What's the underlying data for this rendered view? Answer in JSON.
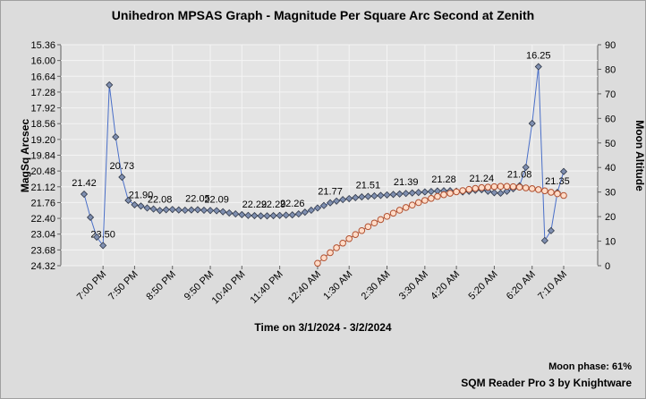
{
  "chart_data": {
    "type": "line",
    "title": "Unihedron MPSAS Graph - Magnitude Per Square Arc Second at Zenith",
    "xlabel": "Time on 3/1/2024 - 3/2/2024",
    "ylabel": "MagSq Arcsec",
    "y2label": "Moon Altitude",
    "annotations": [
      "Moon phase: 61%",
      "SQM Reader Pro 3 by Knightware"
    ],
    "categories": [
      null,
      null,
      null,
      "7:00 PM",
      null,
      null,
      null,
      null,
      "7:50 PM",
      null,
      null,
      null,
      null,
      null,
      "8:50 PM",
      null,
      null,
      null,
      null,
      null,
      "9:50 PM",
      null,
      null,
      null,
      null,
      "10:40 PM",
      null,
      null,
      null,
      null,
      null,
      "11:40 PM",
      null,
      null,
      null,
      null,
      null,
      "12:40 AM",
      null,
      null,
      null,
      null,
      "1:30 AM",
      null,
      null,
      null,
      null,
      null,
      "2:30 AM",
      null,
      null,
      null,
      null,
      null,
      "3:30 AM",
      null,
      null,
      null,
      null,
      "4:20 AM",
      null,
      null,
      null,
      null,
      null,
      "5:20 AM",
      null,
      null,
      null,
      null,
      null,
      "6:20 AM",
      null,
      null,
      null,
      null,
      "7:10 AM"
    ],
    "ylim": [
      24.32,
      15.36
    ],
    "yticks": [
      15.36,
      {
        "value": 16.0,
        "label": "16.00"
      },
      16.64,
      17.28,
      17.92,
      18.56,
      {
        "value": 19.2,
        "label": "19.20"
      },
      19.84,
      20.48,
      21.12,
      21.76,
      {
        "value": 22.4,
        "label": "22.40"
      },
      23.04,
      23.68,
      24.32
    ],
    "y2lim": [
      0,
      90
    ],
    "y2ticks": [
      0,
      10,
      20,
      30,
      40,
      50,
      60,
      70,
      80,
      90
    ],
    "grid": true,
    "series": [
      {
        "color": "#4a6fc8",
        "marker": "diamond",
        "marker_color": "#7f8fb0",
        "values": [
          21.42,
          22.36,
          23.16,
          23.5,
          16.99,
          19.1,
          20.73,
          21.67,
          21.85,
          21.9,
          21.98,
          22.02,
          22.08,
          22.05,
          22.04,
          22.06,
          22.07,
          22.06,
          22.05,
          22.07,
          22.08,
          22.09,
          22.13,
          22.18,
          22.22,
          22.25,
          22.28,
          22.29,
          22.3,
          22.3,
          22.29,
          22.28,
          22.27,
          22.26,
          22.22,
          22.15,
          22.07,
          21.98,
          21.88,
          21.77,
          21.7,
          21.64,
          21.6,
          21.56,
          21.53,
          21.51,
          21.49,
          21.47,
          21.45,
          21.43,
          21.41,
          21.39,
          21.37,
          21.35,
          21.33,
          21.31,
          21.29,
          21.28,
          21.28,
          21.3,
          21.33,
          21.3,
          21.26,
          21.24,
          21.3,
          21.36,
          21.38,
          21.3,
          21.2,
          21.08,
          20.33,
          18.55,
          16.25,
          23.3,
          22.9,
          21.35,
          20.5
        ],
        "value_labels": [
          "21.42",
          null,
          null,
          "23.50",
          null,
          null,
          "20.73",
          null,
          null,
          "21.90",
          null,
          null,
          "22.08",
          null,
          null,
          null,
          null,
          null,
          "22.05",
          null,
          null,
          "22.09",
          null,
          null,
          null,
          null,
          null,
          "22.29",
          null,
          null,
          "22.29",
          null,
          null,
          "22.26",
          null,
          null,
          null,
          null,
          null,
          "21.77",
          null,
          null,
          null,
          null,
          null,
          "21.51",
          null,
          null,
          null,
          null,
          null,
          "21.39",
          null,
          null,
          null,
          null,
          null,
          "21.28",
          null,
          null,
          null,
          null,
          null,
          "21.24",
          null,
          null,
          null,
          null,
          null,
          "21.08",
          null,
          null,
          "16.25",
          null,
          null,
          "21.35",
          null
        ]
      },
      {
        "color": "#b05030",
        "marker": "circle",
        "marker_color": "#ffdcc8",
        "axis": "y2",
        "values": [
          null,
          null,
          null,
          null,
          null,
          null,
          null,
          null,
          null,
          null,
          null,
          null,
          null,
          null,
          null,
          null,
          null,
          null,
          null,
          null,
          null,
          null,
          null,
          null,
          null,
          null,
          null,
          null,
          null,
          null,
          null,
          null,
          null,
          null,
          null,
          null,
          null,
          1,
          3.2,
          5.3,
          7.3,
          9.2,
          11,
          12.7,
          14.3,
          15.9,
          17.4,
          18.8,
          20.1,
          21.4,
          22.6,
          23.7,
          24.7,
          25.7,
          26.6,
          27.4,
          28.2,
          28.9,
          29.5,
          30.1,
          30.6,
          31.1,
          31.5,
          31.8,
          32,
          32.2,
          32.3,
          32.3,
          32.2,
          32,
          31.7,
          31.4,
          31,
          30.5,
          29.9,
          29.3,
          28.6
        ]
      }
    ]
  }
}
